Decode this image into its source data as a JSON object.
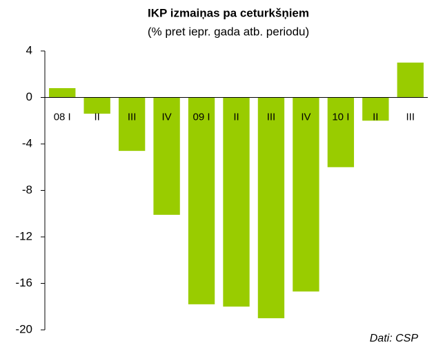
{
  "chart_data": {
    "type": "bar",
    "title": "IKP izmaiņas pa ceturkšņiem",
    "subtitle": "(% pret iepr. gada atb. periodu)",
    "source": "Dati: CSP",
    "categories": [
      "08 I",
      "II",
      "III",
      "IV",
      "09 I",
      "II",
      "III",
      "IV",
      "10 I",
      "II",
      "III"
    ],
    "values": [
      0.8,
      -1.4,
      -4.6,
      -10.1,
      -17.8,
      -18.0,
      -19.0,
      -16.7,
      -6.0,
      -2.0,
      3.0
    ],
    "color": "#99cc00",
    "ylim": [
      -20,
      4
    ],
    "yticks": [
      -20,
      -16,
      -12,
      -8,
      -4,
      0,
      4
    ],
    "grid": false
  }
}
